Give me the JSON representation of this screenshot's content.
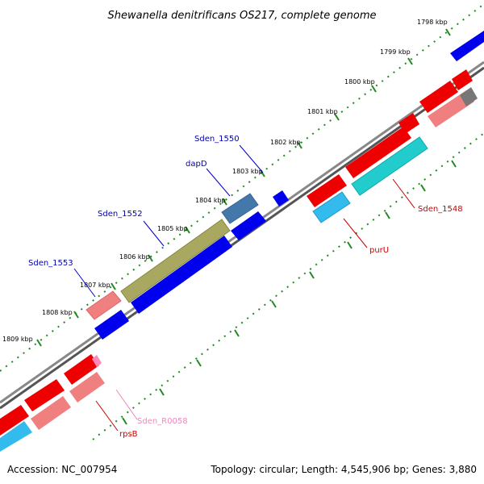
{
  "title": "Shewanella denitrificans OS217, complete genome",
  "footer": {
    "accession": "Accession: NC_007954",
    "summary": "Topology: circular; Length: 4,545,906 bp; Genes: 3,880"
  },
  "ticks": [
    "1798 kbp",
    "1799 kbp",
    "1800 kbp",
    "1801 kbp",
    "1802 kbp",
    "1803 kbp",
    "1804 kbp",
    "1805 kbp",
    "1806 kbp",
    "1807 kbp",
    "1808 kbp",
    "1809 kbp"
  ],
  "gene_labels": {
    "sden_1550": "Sden_1550",
    "dapD": "dapD",
    "sden_1552": "Sden_1552",
    "sden_1553": "Sden_1553",
    "sden_1548": "Sden_1548",
    "purU": "purU",
    "sden_r0058": "Sden_R0058",
    "rpsB": "rpsB"
  },
  "colors": {
    "forward_gene": "#0000ee",
    "reverse_gene": "#ee0000",
    "rna_gene": "#ff88bb",
    "label_blue": "#0000aa",
    "label_red": "#cc0000",
    "label_pink": "#ee88bb",
    "backbone": "#777777",
    "tick_mark": "#228822"
  }
}
